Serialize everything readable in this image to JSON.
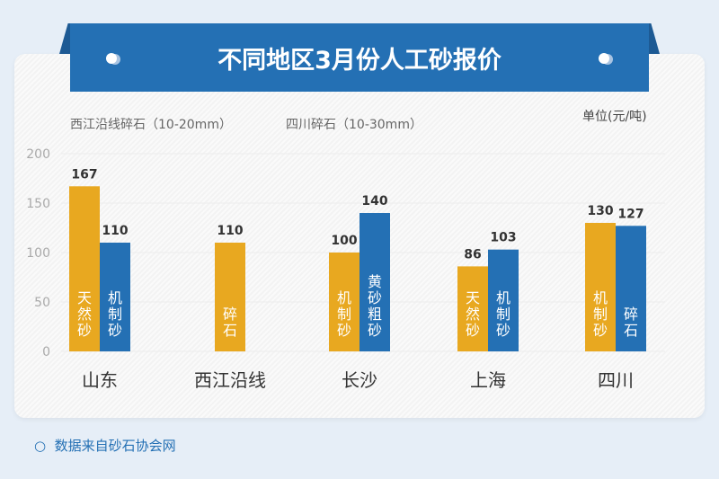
{
  "title": "不同地区3月份人工砂报价",
  "legend": [
    "西江沿线碎石（10-20mm）",
    "四川碎石（10-30mm）"
  ],
  "unit": "单位(元/吨)",
  "footer": {
    "icon": "circle-outline-icon",
    "text": "数据来自砂石协会网"
  },
  "colors": {
    "orange": "#e8a820",
    "blue": "#2470b4"
  },
  "chart_data": {
    "type": "bar",
    "categories": [
      "山东",
      "西江沿线",
      "长沙",
      "上海",
      "四川"
    ],
    "ylim": [
      0,
      200
    ],
    "yticks": [
      0,
      50,
      100,
      150,
      200
    ],
    "grid": true,
    "bars": [
      {
        "category": "山东",
        "color": "orange",
        "value": 167,
        "label": "天然砂"
      },
      {
        "category": "山东",
        "color": "blue",
        "value": 110,
        "label": "机制砂"
      },
      {
        "category": "西江沿线",
        "color": "orange",
        "value": 110,
        "label": "碎石"
      },
      {
        "category": "长沙",
        "color": "orange",
        "value": 100,
        "label": "机制砂"
      },
      {
        "category": "长沙",
        "color": "blue",
        "value": 140,
        "label": "黄砂粗砂"
      },
      {
        "category": "上海",
        "color": "orange",
        "value": 86,
        "label": "天然砂"
      },
      {
        "category": "上海",
        "color": "blue",
        "value": 103,
        "label": "机制砂"
      },
      {
        "category": "四川",
        "color": "orange",
        "value": 130,
        "label": "机制砂"
      },
      {
        "category": "四川",
        "color": "blue",
        "value": 127,
        "label": "碎石"
      }
    ]
  }
}
